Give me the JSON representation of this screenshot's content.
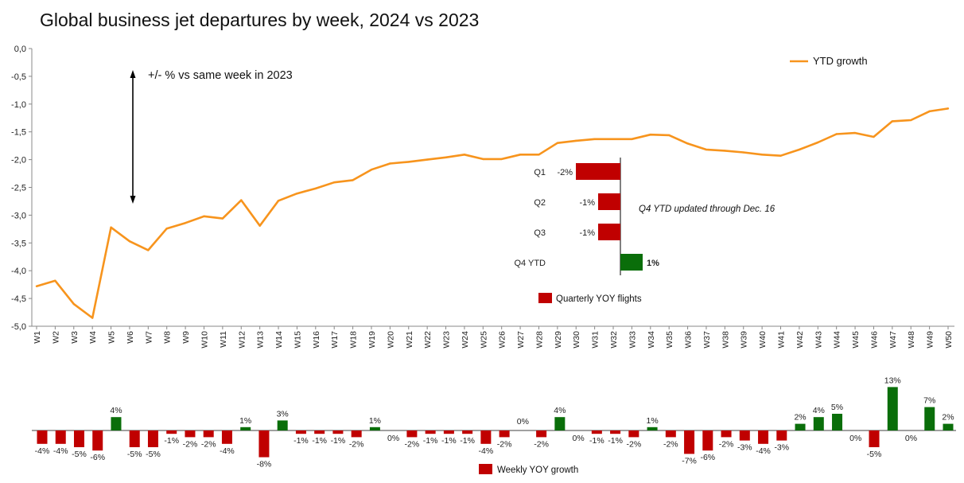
{
  "title": "Global business jet departures by week, 2024 vs 2023",
  "colors": {
    "ytd": "#F7941D",
    "negative": "#C00000",
    "positive": "#0A6E0A",
    "axis": "#888888"
  },
  "chart_data": [
    {
      "type": "line",
      "title": "",
      "annotation": "+/- %  vs same week in 2023",
      "legend": "YTD growth",
      "legend_position": "top-right",
      "ylim": [
        -5.0,
        0.0
      ],
      "yticks": [
        "0,0",
        "-0,5",
        "-1,0",
        "-1,5",
        "-2,0",
        "-2,5",
        "-3,0",
        "-3,5",
        "-4,0",
        "-4,5",
        "-5,0"
      ],
      "categories": [
        "W1",
        "W2",
        "W3",
        "W4",
        "W5",
        "W6",
        "W7",
        "W8",
        "W9",
        "W10",
        "W11",
        "W12",
        "W13",
        "W14",
        "W15",
        "W16",
        "W17",
        "W18",
        "W19",
        "W20",
        "W21",
        "W22",
        "W23",
        "W24",
        "W25",
        "W26",
        "W27",
        "W28",
        "W29",
        "W30",
        "W31",
        "W32",
        "W33",
        "W34",
        "W35",
        "W36",
        "W37",
        "W38",
        "W39",
        "W40",
        "W41",
        "W42",
        "W43",
        "W44",
        "W45",
        "W46",
        "W47",
        "W48",
        "W49",
        "W50"
      ],
      "series": [
        {
          "name": "YTD growth",
          "values": [
            -4.28,
            -4.18,
            -4.6,
            -4.85,
            -3.22,
            -3.47,
            -3.63,
            -3.24,
            -3.14,
            -3.02,
            -3.06,
            -2.73,
            -3.19,
            -2.74,
            -2.61,
            -2.52,
            -2.41,
            -2.37,
            -2.18,
            -2.07,
            -2.04,
            -2.0,
            -1.96,
            -1.91,
            -1.99,
            -1.99,
            -1.91,
            -1.91,
            -1.7,
            -1.66,
            -1.63,
            -1.63,
            -1.63,
            -1.55,
            -1.56,
            -1.71,
            -1.82,
            -1.84,
            -1.87,
            -1.91,
            -1.93,
            -1.82,
            -1.69,
            -1.54,
            -1.52,
            -1.59,
            -1.31,
            -1.29,
            -1.13,
            -1.08
          ]
        }
      ]
    },
    {
      "type": "bar",
      "orientation": "horizontal",
      "categories": [
        "Q1",
        "Q2",
        "Q3",
        "Q4 YTD"
      ],
      "values": [
        -2,
        -1,
        -1,
        1
      ],
      "labels": [
        "-2%",
        "-1%",
        "-1%",
        "1%"
      ],
      "legend": "Quarterly YOY flights",
      "note": "Q4 YTD updated through Dec. 16"
    },
    {
      "type": "bar",
      "legend": "Weekly YOY growth",
      "categories": [
        "W1",
        "W2",
        "W3",
        "W4",
        "W5",
        "W6",
        "W7",
        "W8",
        "W9",
        "W10",
        "W11",
        "W12",
        "W13",
        "W14",
        "W15",
        "W16",
        "W17",
        "W18",
        "W19",
        "W20",
        "W21",
        "W22",
        "W23",
        "W24",
        "W25",
        "W26",
        "W27",
        "W28",
        "W29",
        "W30",
        "W31",
        "W32",
        "W33",
        "W34",
        "W35",
        "W36",
        "W37",
        "W38",
        "W39",
        "W40",
        "W41",
        "W42",
        "W43",
        "W44",
        "W45",
        "W46",
        "W47",
        "W48",
        "W49",
        "W50"
      ],
      "values": [
        -4,
        -4,
        -5,
        -6,
        4,
        -5,
        -5,
        -1,
        -2,
        -2,
        -4,
        1,
        -8,
        3,
        -1,
        -1,
        -1,
        -2,
        1,
        0,
        -2,
        -1,
        -1,
        -1,
        -4,
        -2,
        0,
        -2,
        4,
        0,
        -1,
        -1,
        -2,
        1,
        -2,
        -7,
        -6,
        -2,
        -3,
        -4,
        -3,
        2,
        4,
        5,
        0,
        -5,
        13,
        0,
        7,
        2
      ],
      "labels": [
        "-4%",
        "-4%",
        "-5%",
        "-6%",
        "4%",
        "-5%",
        "-5%",
        "-1%",
        "-2%",
        "-2%",
        "-4%",
        "1%",
        "-8%",
        "3%",
        "-1%",
        "-1%",
        "-1%",
        "-2%",
        "1%",
        "0%",
        "-2%",
        "-1%",
        "-1%",
        "-1%",
        "-4%",
        "-2%",
        "0%",
        "-2%",
        "4%",
        "0%",
        "-1%",
        "-1%",
        "-2%",
        "1%",
        "-2%",
        "-7%",
        "-6%",
        "-2%",
        "-3%",
        "-4%",
        "-3%",
        "2%",
        "4%",
        "5%",
        "0%",
        "-5%",
        "13%",
        "0%",
        "7%",
        "2%"
      ]
    }
  ]
}
